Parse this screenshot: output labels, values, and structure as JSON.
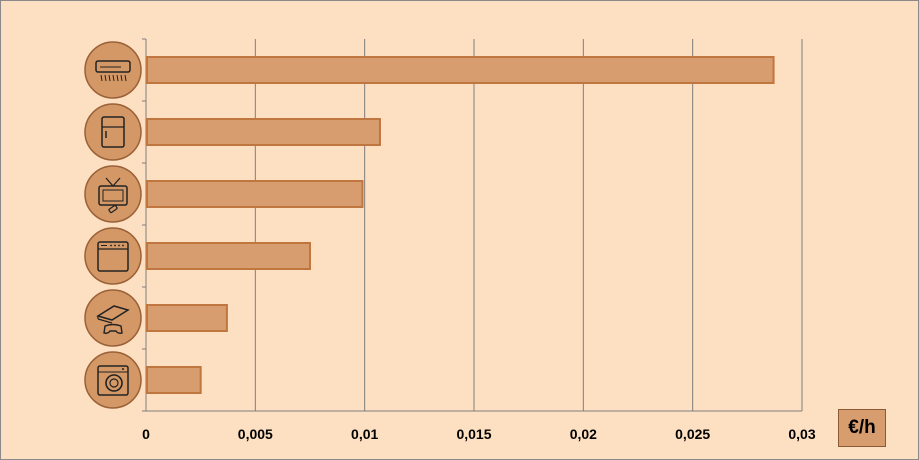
{
  "chart_data": {
    "type": "bar",
    "orientation": "horizontal",
    "categories": [
      "air-conditioner-icon",
      "refrigerator-icon",
      "television-icon",
      "dishwasher-icon",
      "game-console-icon",
      "washing-machine-icon"
    ],
    "values": [
      0.0287,
      0.0107,
      0.0099,
      0.0075,
      0.0037,
      0.0025
    ],
    "xlim": [
      0,
      0.03
    ],
    "xticks": [
      "0",
      "0,005",
      "0,01",
      "0,015",
      "0,02",
      "0,025",
      "0,03"
    ],
    "unit_label": "€/h",
    "grid": true,
    "legend": "none"
  },
  "colors": {
    "background": "#fddfc2",
    "bar_fill": "#d79d6e",
    "bar_stroke": "#c0763f",
    "icon_circle": "#d49866",
    "grid": "#7f7f7f"
  }
}
